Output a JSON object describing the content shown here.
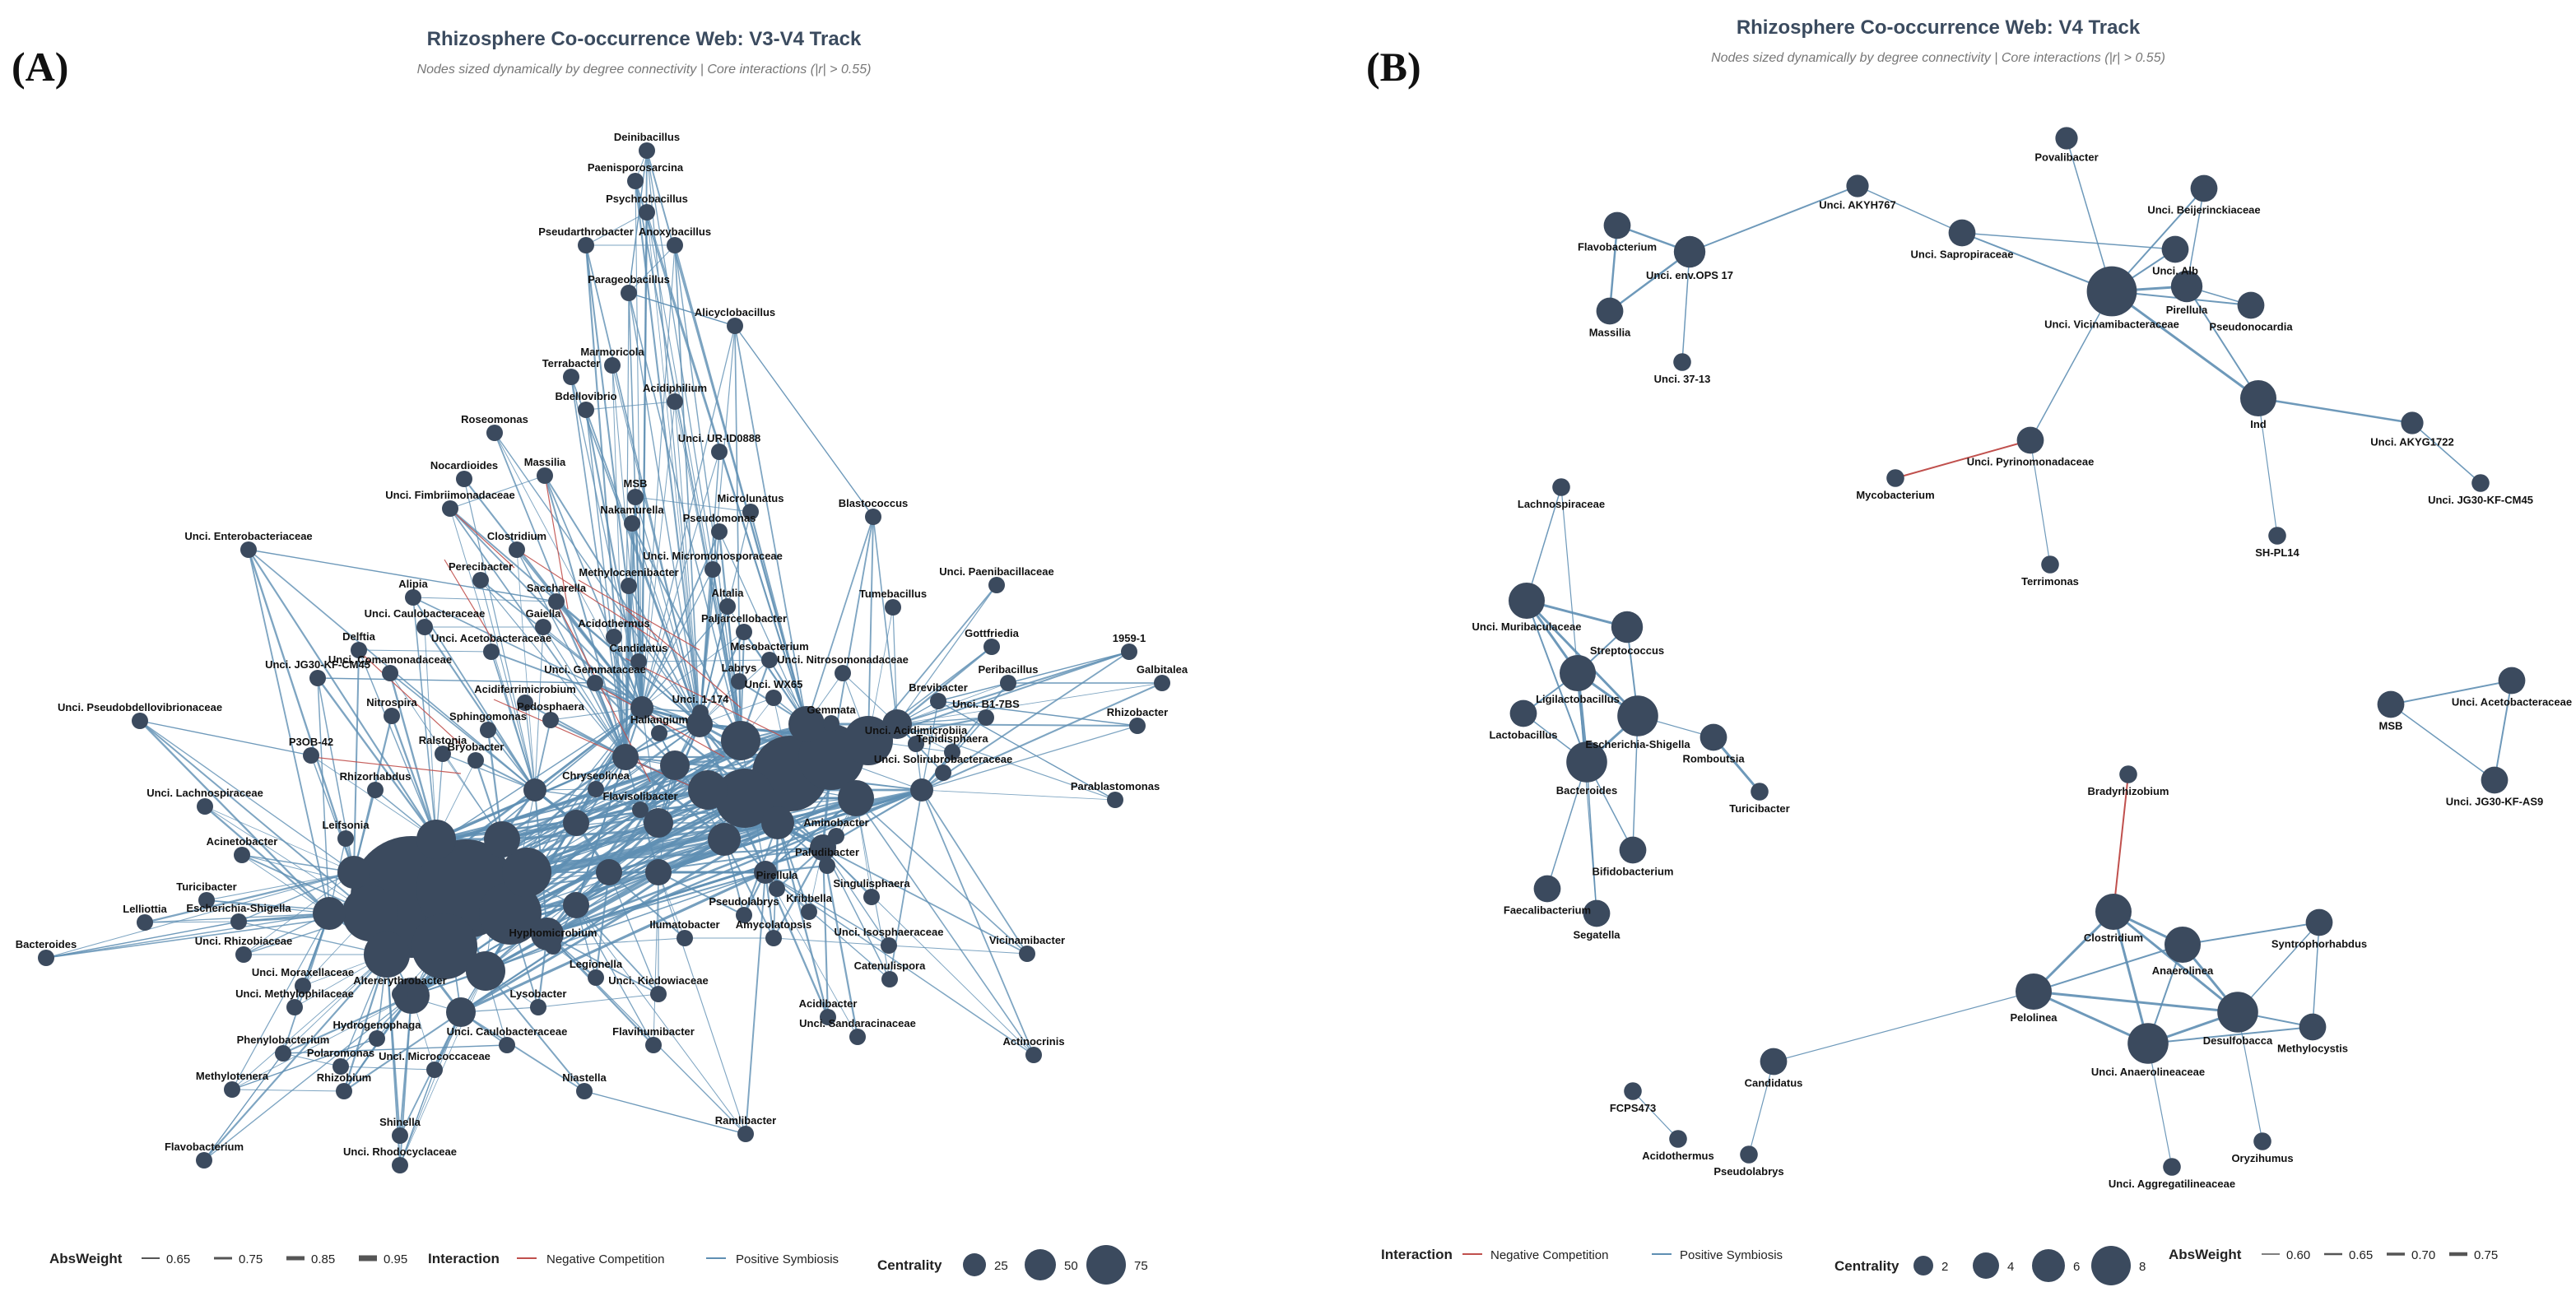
{
  "panel_a": {
    "letter": "(A)",
    "title": "Rhizosphere Co-occurrence Web: V3-V4 Track",
    "subtitle": "Nodes sized dynamically by degree connectivity | Core interactions (|r| > 0.55)",
    "legend": {
      "absweight_title": "AbsWeight",
      "absweight_items": [
        "0.65",
        "0.75",
        "0.85",
        "0.95"
      ],
      "interaction_title": "Interaction",
      "interaction_items": [
        "Negative Competition",
        "Positive Symbiosis"
      ],
      "centrality_title": "Centrality",
      "centrality_items": [
        "25",
        "50",
        "75"
      ]
    },
    "nodes": [
      {
        "label": "Deinibacillus",
        "c": 8
      },
      {
        "label": "Paenisporosarcina",
        "c": 8
      },
      {
        "label": "Psychrobacillus",
        "c": 8
      },
      {
        "label": "Pseudarthrobacter",
        "c": 8
      },
      {
        "label": "Anoxybacillus",
        "c": 8
      },
      {
        "label": "Parageobacillus",
        "c": 8
      },
      {
        "label": "Alicyclobacillus",
        "c": 8
      },
      {
        "label": "Terrabacter",
        "c": 8
      },
      {
        "label": "Marmoricola",
        "c": 8
      },
      {
        "label": "Bdellovibrio",
        "c": 8
      },
      {
        "label": "Acidiphilium",
        "c": 8
      },
      {
        "label": "Roseomonas",
        "c": 8
      },
      {
        "label": "Nocardioides",
        "c": 8
      },
      {
        "label": "Unci. UR-ID0888",
        "c": 8
      },
      {
        "label": "Massilia",
        "c": 8
      },
      {
        "label": "Unci. Fimbriimonadaceae",
        "c": 8
      },
      {
        "label": "MSB",
        "c": 8
      },
      {
        "label": "Microlunatus",
        "c": 8
      },
      {
        "label": "Nakamurella",
        "c": 8
      },
      {
        "label": "Pseudomonas",
        "c": 8
      },
      {
        "label": "Blastococcus",
        "c": 8
      },
      {
        "label": "Unci. Enterobacteriaceae",
        "c": 8
      },
      {
        "label": "Clostridium",
        "c": 8
      },
      {
        "label": "Unci. Micromonosporaceae",
        "c": 8
      },
      {
        "label": "Perecibacter",
        "c": 8
      },
      {
        "label": "Methylocaenibacter",
        "c": 8
      },
      {
        "label": "Unci. Paenibacillaceae",
        "c": 8
      },
      {
        "label": "Tumebacillus",
        "c": 8
      },
      {
        "label": "Alipia",
        "c": 8
      },
      {
        "label": "Saccharella",
        "c": 8
      },
      {
        "label": "Altalia",
        "c": 8
      },
      {
        "label": "Unci. Caulobacteraceae",
        "c": 8
      },
      {
        "label": "Gaiella",
        "c": 8
      },
      {
        "label": "Acidothermus",
        "c": 8
      },
      {
        "label": "Paljarcellobacter",
        "c": 8
      },
      {
        "label": "Gottfriedia",
        "c": 8
      },
      {
        "label": "1959-1",
        "c": 8
      },
      {
        "label": "Unci. Acetobacteraceae",
        "c": 8
      },
      {
        "label": "Delftia",
        "c": 8
      },
      {
        "label": "Candidatus",
        "c": 8
      },
      {
        "label": "Mesobacterium",
        "c": 8
      },
      {
        "label": "Unci. JG30-KF-CM45",
        "c": 8
      },
      {
        "label": "Unci. Nitrosomonadaceae",
        "c": 8
      },
      {
        "label": "Unci. Comamonadaceae",
        "c": 8
      },
      {
        "label": "Labrys",
        "c": 8
      },
      {
        "label": "Peribacillus",
        "c": 8
      },
      {
        "label": "Galbitalea",
        "c": 8
      },
      {
        "label": "Unci. Gemmataceae",
        "c": 8
      },
      {
        "label": "Unci. WX65",
        "c": 8
      },
      {
        "label": "Brevibacter",
        "c": 8
      },
      {
        "label": "Acidiferrimicrobium",
        "c": 8
      },
      {
        "label": "Unci. 1-174",
        "c": 8
      },
      {
        "label": "Unci. B1-7BS",
        "c": 8
      },
      {
        "label": "Unci. Pseudobdellovibrionaceae",
        "c": 8
      },
      {
        "label": "Nitrospira",
        "c": 8
      },
      {
        "label": "Pedosphaera",
        "c": 8
      },
      {
        "label": "Gemmata",
        "c": 8
      },
      {
        "label": "Rhizobacter",
        "c": 8
      },
      {
        "label": "Sphingomonas",
        "c": 8
      },
      {
        "label": "Haliangium",
        "c": 8
      },
      {
        "label": "Unci. Acidimicrobiia",
        "c": 8
      },
      {
        "label": "P3OB-42",
        "c": 8
      },
      {
        "label": "Ralstonia",
        "c": 8
      },
      {
        "label": "Bryobacter",
        "c": 8
      },
      {
        "label": "Tepidisphaera",
        "c": 8
      },
      {
        "label": "Unci. Solirubrobacteraceae",
        "c": 8
      },
      {
        "label": "Chryseolinea",
        "c": 8
      },
      {
        "label": "Rhizorhabdus",
        "c": 8
      },
      {
        "label": "Parablastomonas",
        "c": 8
      },
      {
        "label": "Unci. Lachnospiraceae",
        "c": 8
      },
      {
        "label": "Flavisolibacter",
        "c": 8
      },
      {
        "label": "Leifsonia",
        "c": 8
      },
      {
        "label": "Aminobacter",
        "c": 8
      },
      {
        "label": "Acinetobacter",
        "c": 8
      },
      {
        "label": "Paludibacter",
        "c": 8
      },
      {
        "label": "Turicibacter",
        "c": 8
      },
      {
        "label": "Pirellula",
        "c": 8
      },
      {
        "label": "Lelliottia",
        "c": 8
      },
      {
        "label": "Escherichia-Shigella",
        "c": 8
      },
      {
        "label": "Singulisphaera",
        "c": 8
      },
      {
        "label": "Bacteroides",
        "c": 8
      },
      {
        "label": "Kribbella",
        "c": 8
      },
      {
        "label": "Pseudolabrys",
        "c": 8
      },
      {
        "label": "Unci. Rhizobiaceae",
        "c": 8
      },
      {
        "label": "Hyphomicrobium",
        "c": 8
      },
      {
        "label": "Ilumatobacter",
        "c": 8
      },
      {
        "label": "Amycolatopsis",
        "c": 8
      },
      {
        "label": "Unci. Isosphaeraceae",
        "c": 8
      },
      {
        "label": "Vicinamibacter",
        "c": 8
      },
      {
        "label": "Unci. Moraxellaceae",
        "c": 8
      },
      {
        "label": "Altererythrobacter",
        "c": 8
      },
      {
        "label": "Legionella",
        "c": 8
      },
      {
        "label": "Catenulispora",
        "c": 8
      },
      {
        "label": "Unci. Methylophilaceae",
        "c": 8
      },
      {
        "label": "Lysobacter",
        "c": 8
      },
      {
        "label": "Unci. Kiedowiaceae",
        "c": 8
      },
      {
        "label": "Acidibacter",
        "c": 8
      },
      {
        "label": "Hydrogenophaga",
        "c": 8
      },
      {
        "label": "Unci. Caulobacteraceae",
        "c": 8
      },
      {
        "label": "Flavihumibacter",
        "c": 8
      },
      {
        "label": "Unci. Sandaracinaceae",
        "c": 8
      },
      {
        "label": "Phenylobacterium",
        "c": 8
      },
      {
        "label": "Polaromonas",
        "c": 8
      },
      {
        "label": "Unci. Micrococcaceae",
        "c": 8
      },
      {
        "label": "Actinocrinis",
        "c": 8
      },
      {
        "label": "Methylotenera",
        "c": 8
      },
      {
        "label": "Rhizobium",
        "c": 8
      },
      {
        "label": "Niastella",
        "c": 8
      },
      {
        "label": "Shinella",
        "c": 8
      },
      {
        "label": "Ramlibacter",
        "c": 8
      },
      {
        "label": "Flavobacterium",
        "c": 8
      },
      {
        "label": "Unci. Rhodocyclaceae",
        "c": 8
      }
    ]
  },
  "panel_b": {
    "letter": "(B)",
    "title": "Rhizosphere Co-occurrence Web: V4 Track",
    "subtitle": "Nodes sized dynamically by degree connectivity | Core interactions (|r| > 0.55)",
    "legend": {
      "interaction_title": "Interaction",
      "interaction_items": [
        "Negative Competition",
        "Positive Symbiosis"
      ],
      "centrality_title": "Centrality",
      "centrality_items": [
        "2",
        "4",
        "6",
        "8"
      ],
      "absweight_title": "AbsWeight",
      "absweight_items": [
        "0.60",
        "0.65",
        "0.70",
        "0.75"
      ]
    },
    "nodes": [
      {
        "label": "Povalibacter",
        "c": 2
      },
      {
        "label": "Unci. AKYH767",
        "c": 2
      },
      {
        "label": "Flavobacterium",
        "c": 3
      },
      {
        "label": "Unci. Sapropiraceae",
        "c": 3
      },
      {
        "label": "Unci. Beijerinckiaceae",
        "c": 3
      },
      {
        "label": "Unci. env.OPS 17",
        "c": 4
      },
      {
        "label": "Unci. Alb",
        "c": 3
      },
      {
        "label": "Pirellula",
        "c": 4
      },
      {
        "label": "Unci. Vicinamibacteraceae",
        "c": 8
      },
      {
        "label": "Pseudonocardia",
        "c": 3
      },
      {
        "label": "Massilia",
        "c": 3
      },
      {
        "label": "Unci. 37-13",
        "c": 1
      },
      {
        "label": "Ind",
        "c": 5
      },
      {
        "label": "Unci. AKYG1722",
        "c": 2
      },
      {
        "label": "Unci. JG30-KF-CM45",
        "c": 1
      },
      {
        "label": "Unci. Pyrinomonadaceae",
        "c": 3
      },
      {
        "label": "Mycobacterium",
        "c": 1
      },
      {
        "label": "SH-PL14",
        "c": 1
      },
      {
        "label": "Terrimonas",
        "c": 1
      },
      {
        "label": "Lachnospiraceae",
        "c": 1
      },
      {
        "label": "Unci. Muribaculaceae",
        "c": 5
      },
      {
        "label": "Streptococcus",
        "c": 4
      },
      {
        "label": "Lactobacillus",
        "c": 3
      },
      {
        "label": "Ligilactobacillus",
        "c": 5
      },
      {
        "label": "Escherichia-Shigella",
        "c": 6
      },
      {
        "label": "Romboutsia",
        "c": 3
      },
      {
        "label": "Bacteroides",
        "c": 6
      },
      {
        "label": "Turicibacter",
        "c": 1
      },
      {
        "label": "Bifidobacterium",
        "c": 3
      },
      {
        "label": "Faecalibacterium",
        "c": 3
      },
      {
        "label": "Segatella",
        "c": 3
      },
      {
        "label": "Unci. Acetobacteraceae",
        "c": 3
      },
      {
        "label": "MSB",
        "c": 3
      },
      {
        "label": "Unci. JG30-KF-AS9",
        "c": 3
      },
      {
        "label": "Bradyrhizobium",
        "c": 1
      },
      {
        "label": "Clostridium",
        "c": 5
      },
      {
        "label": "Anaerolinea",
        "c": 5
      },
      {
        "label": "Syntrophorhabdus",
        "c": 3
      },
      {
        "label": "Desulfobacca",
        "c": 6
      },
      {
        "label": "Pelolinea",
        "c": 5
      },
      {
        "label": "Methylocystis",
        "c": 3
      },
      {
        "label": "Unci. Anaerolineaceae",
        "c": 6
      },
      {
        "label": "Candidatus",
        "c": 3
      },
      {
        "label": "Oryzihumus",
        "c": 1
      },
      {
        "label": "FCPS473",
        "c": 1
      },
      {
        "label": "Acidothermus",
        "c": 1
      },
      {
        "label": "Pseudolabrys",
        "c": 1
      },
      {
        "label": "Unci. Aggregatilineaceae",
        "c": 1
      }
    ]
  }
}
